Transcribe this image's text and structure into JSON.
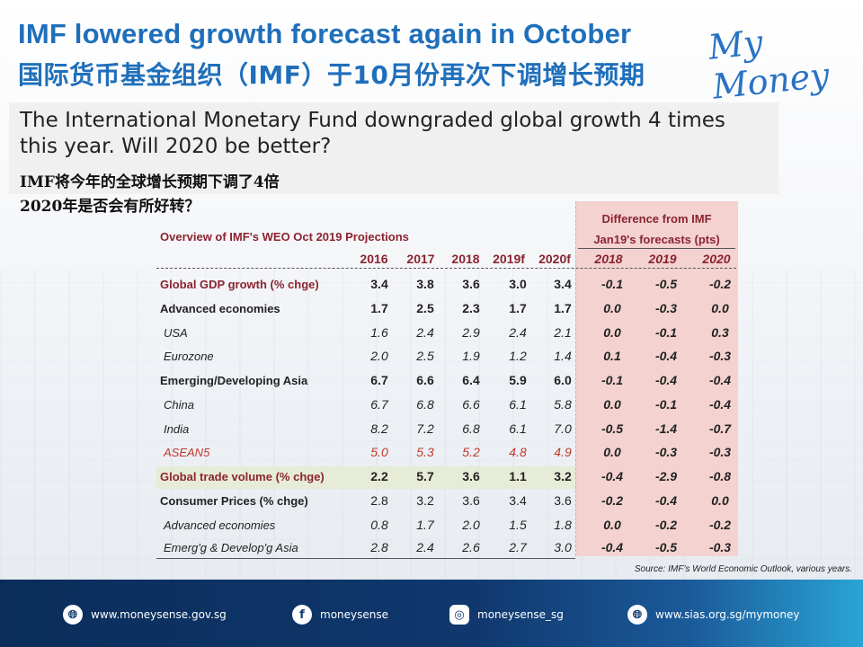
{
  "header": {
    "title_en": "IMF lowered growth forecast again in October",
    "title_zh": "国际货币基金组织（IMF）于10月份再次下调增长预期",
    "logo": "My Money"
  },
  "subtitle": {
    "en": "The International Monetary Fund downgraded global growth 4 times this year. Will 2020 be better?",
    "zh_line1": "IMF将今年的全球增长预期下调了4倍",
    "zh_line2": "2020年是否会有所好转？"
  },
  "table": {
    "title": "Overview of IMF's WEO Oct 2019 Projections",
    "diff_title_line1": "Difference from IMF",
    "diff_title_line2": "Jan19's forecasts (pts)",
    "years": [
      "2016",
      "2017",
      "2018",
      "2019f",
      "2020f"
    ],
    "diff_years": [
      "2018",
      "2019",
      "2020"
    ],
    "rows": [
      {
        "label": "Global GDP growth (% chge)",
        "values": [
          "3.4",
          "3.8",
          "3.6",
          "3.0",
          "3.4"
        ],
        "diff": [
          "-0.1",
          "-0.5",
          "-0.2"
        ]
      },
      {
        "label": "Advanced economies",
        "values": [
          "1.7",
          "2.5",
          "2.3",
          "1.7",
          "1.7"
        ],
        "diff": [
          "0.0",
          "-0.3",
          "0.0"
        ]
      },
      {
        "label": "USA",
        "values": [
          "1.6",
          "2.4",
          "2.9",
          "2.4",
          "2.1"
        ],
        "diff": [
          "0.0",
          "-0.1",
          "0.3"
        ]
      },
      {
        "label": "Eurozone",
        "values": [
          "2.0",
          "2.5",
          "1.9",
          "1.2",
          "1.4"
        ],
        "diff": [
          "0.1",
          "-0.4",
          "-0.3"
        ]
      },
      {
        "label": "Emerging/Developing Asia",
        "values": [
          "6.7",
          "6.6",
          "6.4",
          "5.9",
          "6.0"
        ],
        "diff": [
          "-0.1",
          "-0.4",
          "-0.4"
        ]
      },
      {
        "label": "China",
        "values": [
          "6.7",
          "6.8",
          "6.6",
          "6.1",
          "5.8"
        ],
        "diff": [
          "0.0",
          "-0.1",
          "-0.4"
        ]
      },
      {
        "label": "India",
        "values": [
          "8.2",
          "7.2",
          "6.8",
          "6.1",
          "7.0"
        ],
        "diff": [
          "-0.5",
          "-1.4",
          "-0.7"
        ]
      },
      {
        "label": "ASEAN5",
        "values": [
          "5.0",
          "5.3",
          "5.2",
          "4.8",
          "4.9"
        ],
        "diff": [
          "0.0",
          "-0.3",
          "-0.3"
        ]
      },
      {
        "label": "Global trade volume (% chge)",
        "values": [
          "2.2",
          "5.7",
          "3.6",
          "1.1",
          "3.2"
        ],
        "diff": [
          "-0.4",
          "-2.9",
          "-0.8"
        ]
      },
      {
        "label": "Consumer Prices (% chge)",
        "values": [
          "2.8",
          "3.2",
          "3.6",
          "3.4",
          "3.6"
        ],
        "diff": [
          "-0.2",
          "-0.4",
          "0.0"
        ]
      },
      {
        "label": "Advanced economies",
        "values": [
          "0.8",
          "1.7",
          "2.0",
          "1.5",
          "1.8"
        ],
        "diff": [
          "0.0",
          "-0.2",
          "-0.2"
        ]
      },
      {
        "label": "Emerg'g & Develop'g Asia",
        "values": [
          "2.8",
          "2.4",
          "2.6",
          "2.7",
          "3.0"
        ],
        "diff": [
          "-0.4",
          "-0.5",
          "-0.3"
        ]
      }
    ],
    "source": "Source: IMF’s World Economic Outlook, various years."
  },
  "footer": {
    "items": [
      {
        "icon": "globe-icon",
        "text": "www.moneysense.gov.sg"
      },
      {
        "icon": "facebook-icon",
        "text": "moneysense"
      },
      {
        "icon": "instagram-icon",
        "text": "moneysense_sg"
      },
      {
        "icon": "globe-icon",
        "text": "www.sias.org.sg/mymoney"
      }
    ]
  },
  "colors": {
    "title_blue": "#1f6fba",
    "maroon": "#8b2430",
    "red": "#c0392b",
    "pink_band": "#f3d2d0",
    "green_band": "#e7ecd6",
    "footer_navy": "#10386e"
  }
}
